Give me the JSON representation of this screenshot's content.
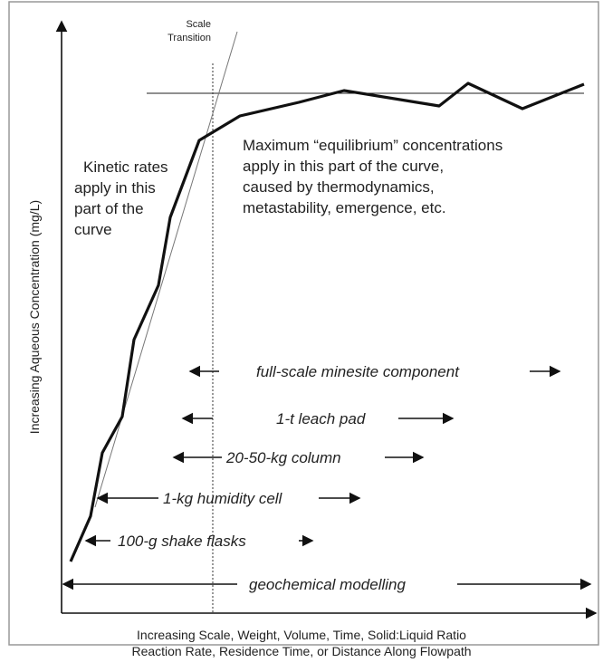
{
  "axes": {
    "y_label": "Increasing Aqueous Concentration (mg/L)",
    "x_label": [
      "Increasing Scale, Weight, Volume, Time, Solid:Liquid Ratio",
      "Reaction Rate, Residence Time, or Distance Along Flowpath"
    ]
  },
  "scale_transition": [
    "Scale",
    "Transition"
  ],
  "annotations": {
    "kinetic": [
      "Kinetic rates",
      "apply in this",
      "part of the",
      "curve"
    ],
    "equilibrium": [
      "Maximum “equilibrium” concentrations",
      "apply in this part of the curve,",
      "caused by thermodynamics,",
      "metastability, emergence, etc."
    ]
  },
  "scales": [
    "full-scale minesite component",
    "1-t leach pad",
    "20-50-kg column",
    "1-kg humidity cell",
    "100-g shake flasks",
    "geochemical modelling"
  ]
}
